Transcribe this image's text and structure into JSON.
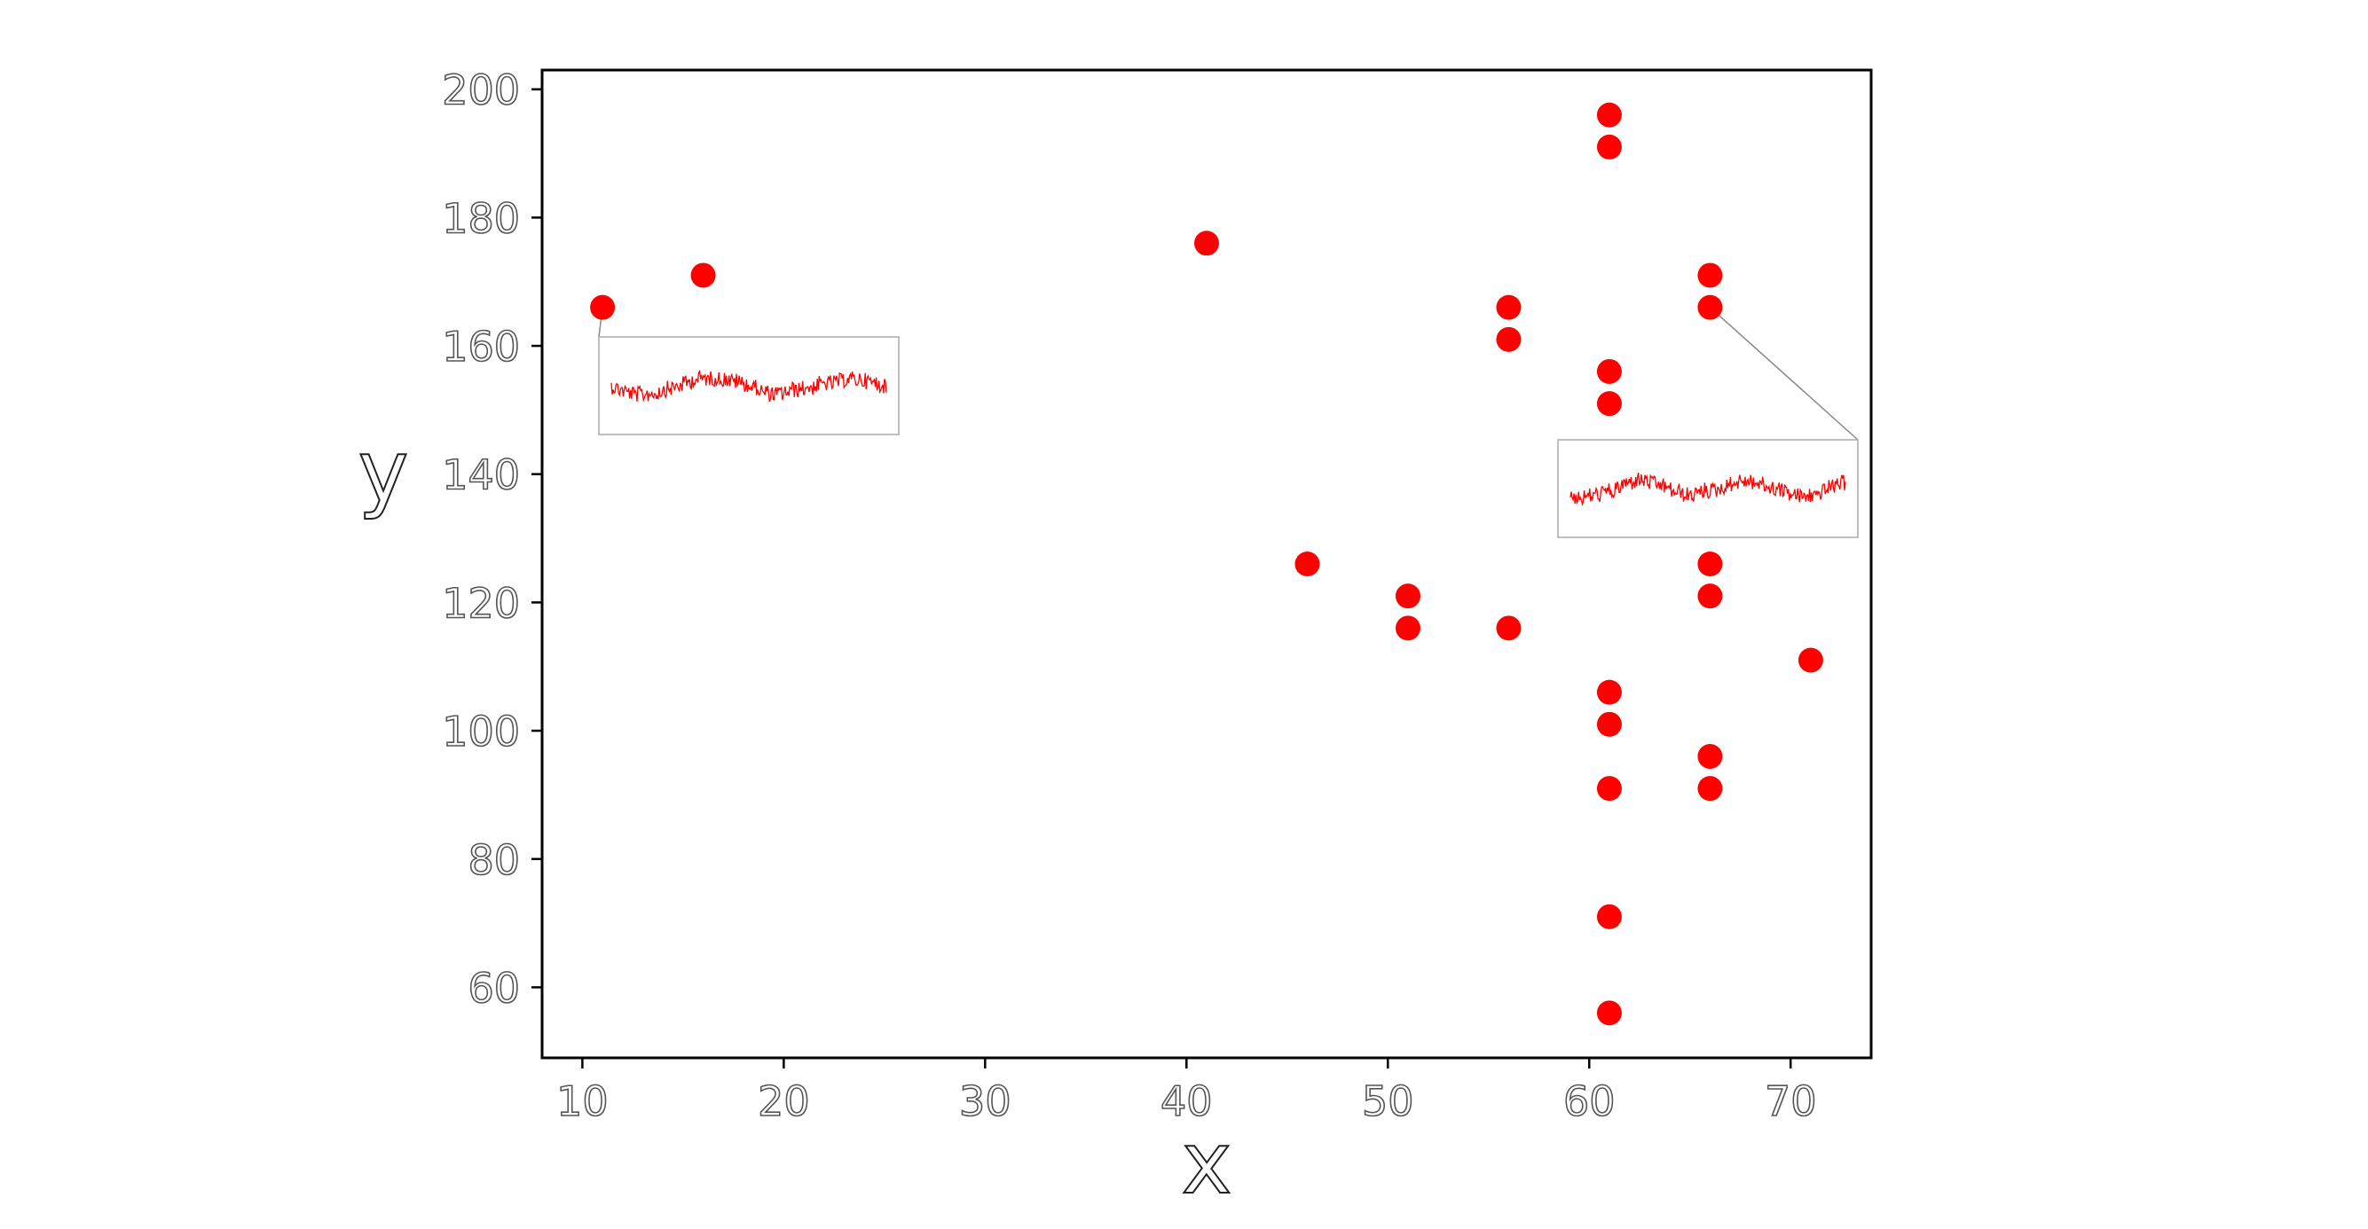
{
  "chart_data": {
    "type": "scatter",
    "title": "",
    "xlabel": "x",
    "ylabel": "y",
    "xlim": [
      8,
      74
    ],
    "ylim": [
      49,
      203
    ],
    "xticks": [
      10,
      20,
      30,
      40,
      50,
      60,
      70
    ],
    "yticks": [
      60,
      80,
      100,
      120,
      140,
      160,
      180,
      200
    ],
    "grid": false,
    "legend": "none",
    "marker_color": "#ff0000",
    "series": [
      {
        "points": [
          {
            "x": 11,
            "y": 166
          },
          {
            "x": 16,
            "y": 171
          },
          {
            "x": 41,
            "y": 176
          },
          {
            "x": 46,
            "y": 126
          },
          {
            "x": 51,
            "y": 121
          },
          {
            "x": 51,
            "y": 116
          },
          {
            "x": 56,
            "y": 166
          },
          {
            "x": 56,
            "y": 161
          },
          {
            "x": 56,
            "y": 116
          },
          {
            "x": 61,
            "y": 196
          },
          {
            "x": 61,
            "y": 191
          },
          {
            "x": 61,
            "y": 156
          },
          {
            "x": 61,
            "y": 151
          },
          {
            "x": 61,
            "y": 106
          },
          {
            "x": 61,
            "y": 101
          },
          {
            "x": 61,
            "y": 91
          },
          {
            "x": 61,
            "y": 71
          },
          {
            "x": 61,
            "y": 56
          },
          {
            "x": 66,
            "y": 171
          },
          {
            "x": 66,
            "y": 166
          },
          {
            "x": 66,
            "y": 126
          },
          {
            "x": 66,
            "y": 121
          },
          {
            "x": 66,
            "y": 96
          },
          {
            "x": 66,
            "y": 91
          },
          {
            "x": 71,
            "y": 111
          }
        ]
      }
    ],
    "insets": [
      {
        "anchor": {
          "x": 11,
          "y": 166
        },
        "color": "#ff0000"
      },
      {
        "anchor": {
          "x": 66,
          "y": 166
        },
        "color": "#ff0000"
      }
    ]
  }
}
